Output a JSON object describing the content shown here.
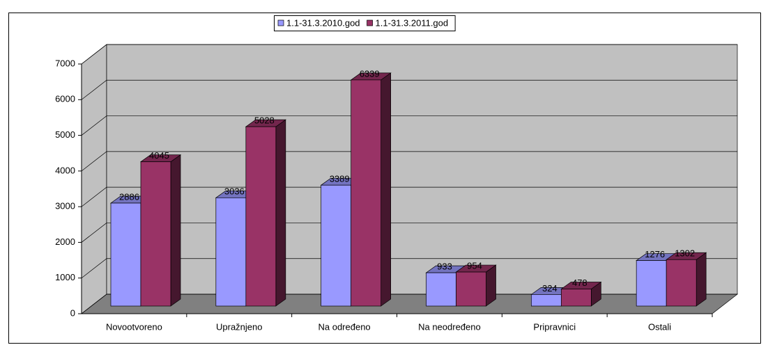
{
  "chart_data": {
    "type": "bar3d",
    "categories": [
      "Novootvoreno",
      "Upražnjeno",
      "Na određeno",
      "Na neodređeno",
      "Pripravnici",
      "Ostali"
    ],
    "series": [
      {
        "name": "1.1-31.3.2010.god",
        "color": "#9999ff",
        "values": [
          2886,
          3036,
          3389,
          933,
          324,
          1276
        ]
      },
      {
        "name": "1.1-31.3.2011.god",
        "color": "#993366",
        "values": [
          4045,
          5028,
          6339,
          954,
          478,
          1302
        ]
      }
    ],
    "ylim": [
      0,
      7000
    ],
    "yticks": [
      0,
      1000,
      2000,
      3000,
      4000,
      5000,
      6000,
      7000
    ],
    "grid": true,
    "legend": "top"
  }
}
